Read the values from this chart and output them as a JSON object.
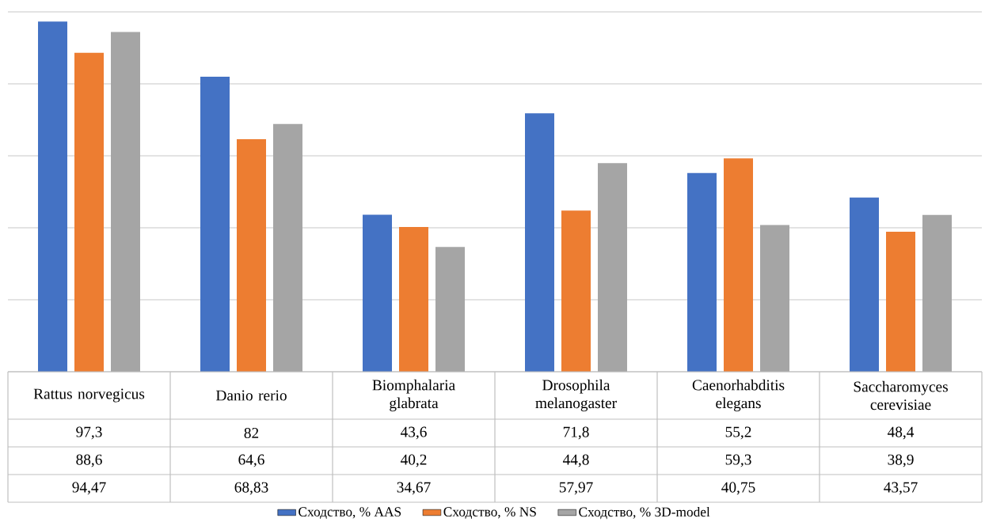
{
  "chart_data": {
    "type": "bar",
    "categories": [
      "Rattus norvegicus",
      "Danio rerio",
      "Biomphalaria glabrata",
      "Drosophila melanogaster",
      "Caenorhabditis elegans",
      "Saccharomyces cerevisiae"
    ],
    "series": [
      {
        "name": "Сходство, % AAS",
        "color": "#4472c4",
        "values": [
          97.3,
          82,
          43.6,
          71.8,
          55.2,
          48.4
        ],
        "value_labels": [
          "97,3",
          "82",
          "43,6",
          "71,8",
          "55,2",
          "48,4"
        ]
      },
      {
        "name": "Сходство, % NS",
        "color": "#ed7d31",
        "values": [
          88.6,
          64.6,
          40.2,
          44.8,
          59.3,
          38.9
        ],
        "value_labels": [
          "88,6",
          "64,6",
          "40,2",
          "44,8",
          "59,3",
          "38,9"
        ]
      },
      {
        "name": "Сходство, % 3D-model",
        "color": "#a5a5a5",
        "values": [
          94.47,
          68.83,
          34.67,
          57.97,
          40.75,
          43.57
        ],
        "value_labels": [
          "94,47",
          "68,83",
          "34,67",
          "57,97",
          "40,75",
          "43,57"
        ]
      }
    ],
    "ylim": [
      0,
      100
    ],
    "yticks": [
      {
        "value": 0,
        "label": null
      },
      {
        "value": 20,
        "label": null
      },
      {
        "value": 40,
        "label": null
      },
      {
        "value": 60,
        "label": null
      },
      {
        "value": 80,
        "label": null
      },
      {
        "value": 100,
        "label": null
      }
    ],
    "grid": "y",
    "legend": "bottom",
    "tick_labels": "x"
  }
}
